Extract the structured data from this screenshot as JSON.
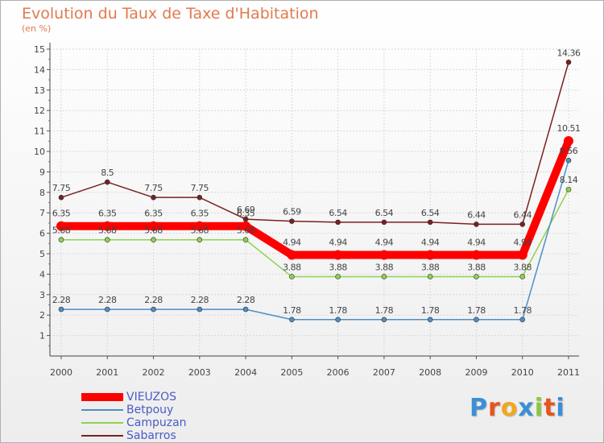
{
  "chart_data": {
    "type": "line",
    "title": "Evolution du Taux de Taxe d'Habitation",
    "ylabel": "(en %)",
    "x": [
      "2000",
      "2001",
      "2002",
      "2003",
      "2004",
      "2005",
      "2006",
      "2007",
      "2008",
      "2009",
      "2010",
      "2011"
    ],
    "ylim": [
      0,
      15
    ],
    "yticks": [
      "1",
      "2",
      "3",
      "4",
      "5",
      "6",
      "7",
      "8",
      "9",
      "10",
      "11",
      "12",
      "13",
      "14",
      "15"
    ],
    "series": [
      {
        "name": "Sabarros",
        "color": "#7a1f1f",
        "values": [
          7.75,
          8.5,
          7.75,
          7.75,
          6.69,
          6.59,
          6.54,
          6.54,
          6.54,
          6.44,
          6.44,
          14.36
        ],
        "labels": [
          "7.75",
          "8.5",
          "7.75",
          "7.75",
          "6.69",
          "6.59",
          "6.54",
          "6.54",
          "6.54",
          "6.44",
          "6.44",
          "14.36"
        ]
      },
      {
        "name": "Campuzan",
        "color": "#8fd14f",
        "values": [
          5.68,
          5.68,
          5.68,
          5.68,
          5.68,
          3.88,
          3.88,
          3.88,
          3.88,
          3.88,
          3.88,
          8.14
        ],
        "labels": [
          "5.68",
          "5.68",
          "5.68",
          "5.68",
          "5.68",
          "3.88",
          "3.88",
          "3.88",
          "3.88",
          "3.88",
          "3.88",
          "8.14"
        ]
      },
      {
        "name": "Betpouy",
        "color": "#4f8fc6",
        "values": [
          2.28,
          2.28,
          2.28,
          2.28,
          2.28,
          1.78,
          1.78,
          1.78,
          1.78,
          1.78,
          1.78,
          9.56
        ],
        "labels": [
          "2.28",
          "2.28",
          "2.28",
          "2.28",
          "2.28",
          "1.78",
          "1.78",
          "1.78",
          "1.78",
          "1.78",
          "1.78",
          "9.56"
        ]
      },
      {
        "name": "VIEUZOS",
        "color": "#ff0000",
        "values": [
          6.35,
          6.35,
          6.35,
          6.35,
          6.35,
          4.94,
          4.94,
          4.94,
          4.94,
          4.94,
          4.94,
          10.51
        ],
        "labels": [
          "6.35",
          "6.35",
          "6.35",
          "6.35",
          "6.35",
          "4.94",
          "4.94",
          "4.94",
          "4.94",
          "4.94",
          "4.94",
          "10.51"
        ]
      }
    ]
  },
  "legend": {
    "items": [
      {
        "label": "VIEUZOS",
        "color": "#ff0000"
      },
      {
        "label": "Betpouy",
        "color": "#4f8fc6"
      },
      {
        "label": "Campuzan",
        "color": "#8fd14f"
      },
      {
        "label": "Sabarros",
        "color": "#7a1f1f"
      }
    ]
  },
  "logo": {
    "letters": [
      "P",
      "r",
      "o",
      "x",
      "i",
      "t",
      "i"
    ],
    "colors": [
      "#3a8fd6",
      "#e8541e",
      "#f2a81d",
      "#3a8fd6",
      "#8cc63f",
      "#e8541e",
      "#3a8fd6"
    ]
  }
}
